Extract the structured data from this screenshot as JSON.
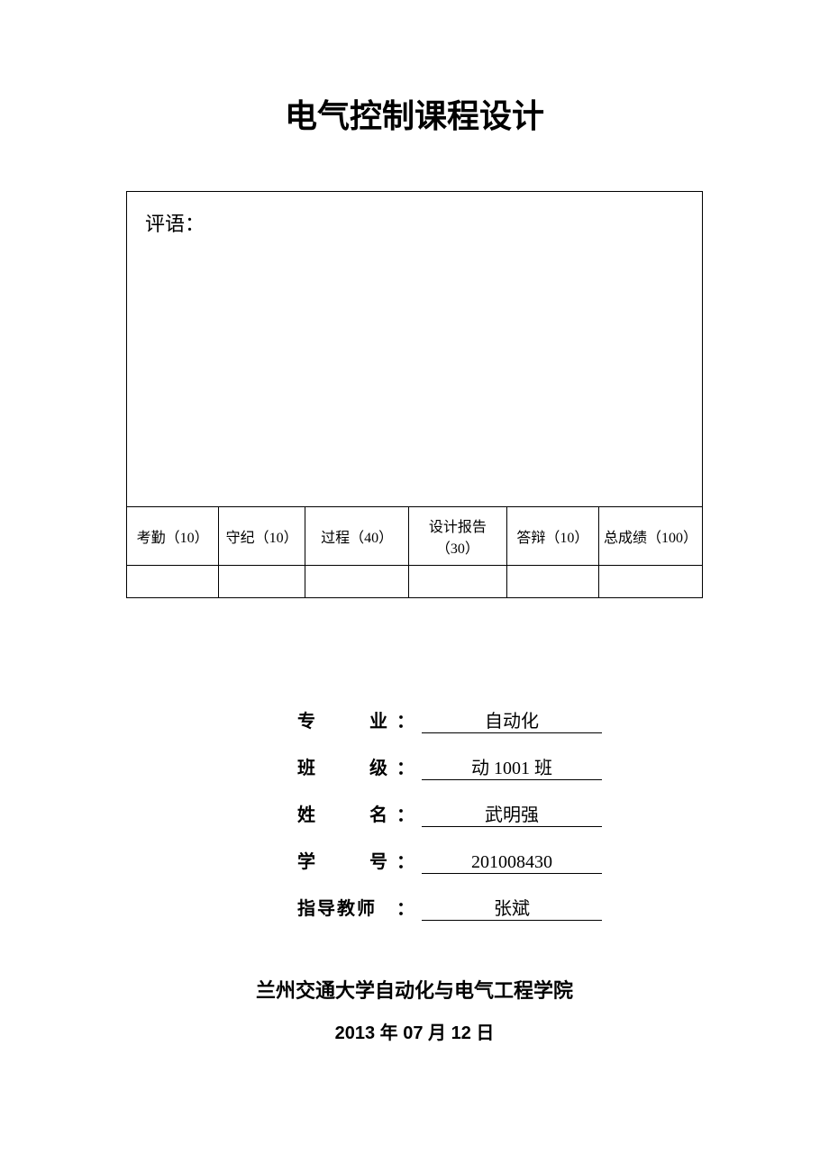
{
  "title": "电气控制课程设计",
  "comment_label": "评语：",
  "score_table": {
    "headers": [
      "考勤（10）",
      "守纪（10）",
      "过程（40）",
      "设计报告（30）",
      "答辩（10）",
      "总成绩（100）"
    ],
    "values": [
      "",
      "",
      "",
      "",
      "",
      ""
    ],
    "column_widths": [
      "16%",
      "15%",
      "18%",
      "17%",
      "16%",
      "18%"
    ]
  },
  "info": {
    "rows": [
      {
        "label_chars": [
          "专",
          "业"
        ],
        "value": "自动化"
      },
      {
        "label_chars": [
          "班",
          "级"
        ],
        "value": "动 1001 班"
      },
      {
        "label_chars": [
          "姓",
          "名"
        ],
        "value": "武明强"
      },
      {
        "label_chars": [
          "学",
          "号"
        ],
        "value": "201008430"
      },
      {
        "label_full": "指导教师",
        "value": "张斌"
      }
    ]
  },
  "footer": {
    "institution": "兰州交通大学自动化与电气工程学院",
    "date": "2013 年 07 月 12 日"
  },
  "colors": {
    "background": "#ffffff",
    "text": "#000000",
    "border": "#000000"
  }
}
